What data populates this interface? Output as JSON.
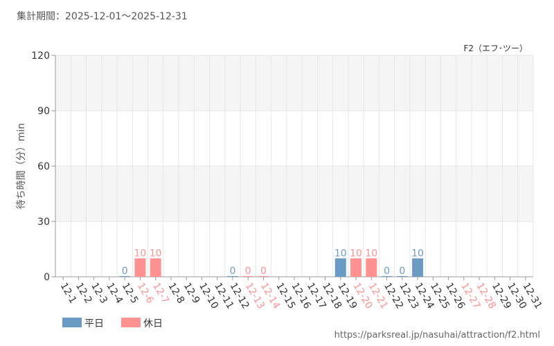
{
  "header": {
    "period_label": "集計期間：2025-12-01～2025-12-31",
    "attraction_name": "F2（エフ･ツー）",
    "source_url": "https://parksreal.jp/nasuhai/attraction/f2.html"
  },
  "colors": {
    "weekday": "#6b9bc3",
    "holiday": "#ff9191",
    "axis_text": "#333333",
    "grid": "#e6e6e6",
    "band": "#f5f5f5",
    "title_text": "#555555"
  },
  "chart_data": {
    "type": "bar",
    "ylabel": "待ち時間（分）min",
    "ylim": [
      0,
      120
    ],
    "yticks": [
      0,
      30,
      60,
      90,
      120
    ],
    "grid": true,
    "legend_position": "bottom-left",
    "categories": [
      "12-1",
      "12-2",
      "12-3",
      "12-4",
      "12-5",
      "12-6",
      "12-7",
      "12-8",
      "12-9",
      "12-10",
      "12-11",
      "12-12",
      "12-13",
      "12-14",
      "12-15",
      "12-16",
      "12-17",
      "12-18",
      "12-19",
      "12-20",
      "12-21",
      "12-22",
      "12-23",
      "12-24",
      "12-25",
      "12-26",
      "12-27",
      "12-28",
      "12-29",
      "12-30",
      "12-31"
    ],
    "holiday_categories": [
      "12-6",
      "12-7",
      "12-13",
      "12-14",
      "12-20",
      "12-21",
      "12-27",
      "12-28"
    ],
    "series": [
      {
        "name": "平日",
        "color": "#6b9bc3",
        "values": [
          null,
          null,
          null,
          null,
          0,
          null,
          null,
          null,
          null,
          null,
          null,
          0,
          null,
          null,
          null,
          null,
          null,
          null,
          10,
          null,
          null,
          0,
          0,
          10,
          null,
          null,
          null,
          null,
          null,
          null,
          null
        ]
      },
      {
        "name": "休日",
        "color": "#ff9191",
        "values": [
          null,
          null,
          null,
          null,
          null,
          10,
          10,
          null,
          null,
          null,
          null,
          null,
          0,
          0,
          null,
          null,
          null,
          null,
          null,
          10,
          10,
          null,
          null,
          null,
          null,
          null,
          null,
          null,
          null,
          null,
          null
        ]
      }
    ]
  }
}
